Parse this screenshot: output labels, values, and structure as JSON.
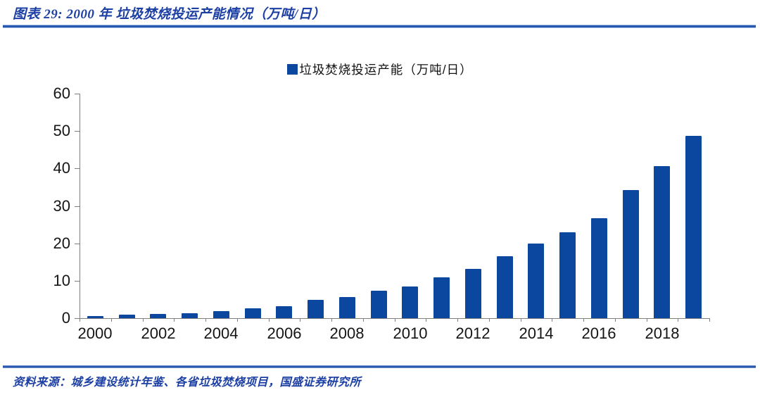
{
  "header": {
    "title": "图表 29:  2000 年 垃圾焚烧投运产能情况（万吨/日）"
  },
  "footer": {
    "source": "资料来源：城乡建设统计年鉴、各省垃圾焚烧项目，国盛证券研究所"
  },
  "colors": {
    "bar": "#0B479F",
    "heading_blue": "#1C3FA4",
    "rule_blue": "#2757AE",
    "axis_gray": "#7F7F7F",
    "label_black": "#151515"
  },
  "chart_data": {
    "type": "bar",
    "title": "",
    "legend": [
      "垃圾焚烧投运产能（万吨/日）"
    ],
    "legend_position": "top-center",
    "categories": [
      2000,
      2001,
      2002,
      2003,
      2004,
      2005,
      2006,
      2007,
      2008,
      2009,
      2010,
      2011,
      2012,
      2013,
      2014,
      2015,
      2016,
      2017,
      2018,
      2019
    ],
    "values": [
      0.6,
      0.9,
      1.1,
      1.4,
      1.8,
      2.6,
      3.2,
      4.8,
      5.7,
      7.3,
      8.5,
      10.9,
      13.1,
      16.5,
      20.0,
      22.9,
      26.8,
      34.2,
      40.6,
      48.8
    ],
    "xlabel": "",
    "ylabel": "",
    "ylim": [
      0,
      60
    ],
    "yticks": [
      0,
      10,
      20,
      30,
      40,
      50,
      60
    ],
    "xtick_label_step": 2,
    "grid": false
  }
}
